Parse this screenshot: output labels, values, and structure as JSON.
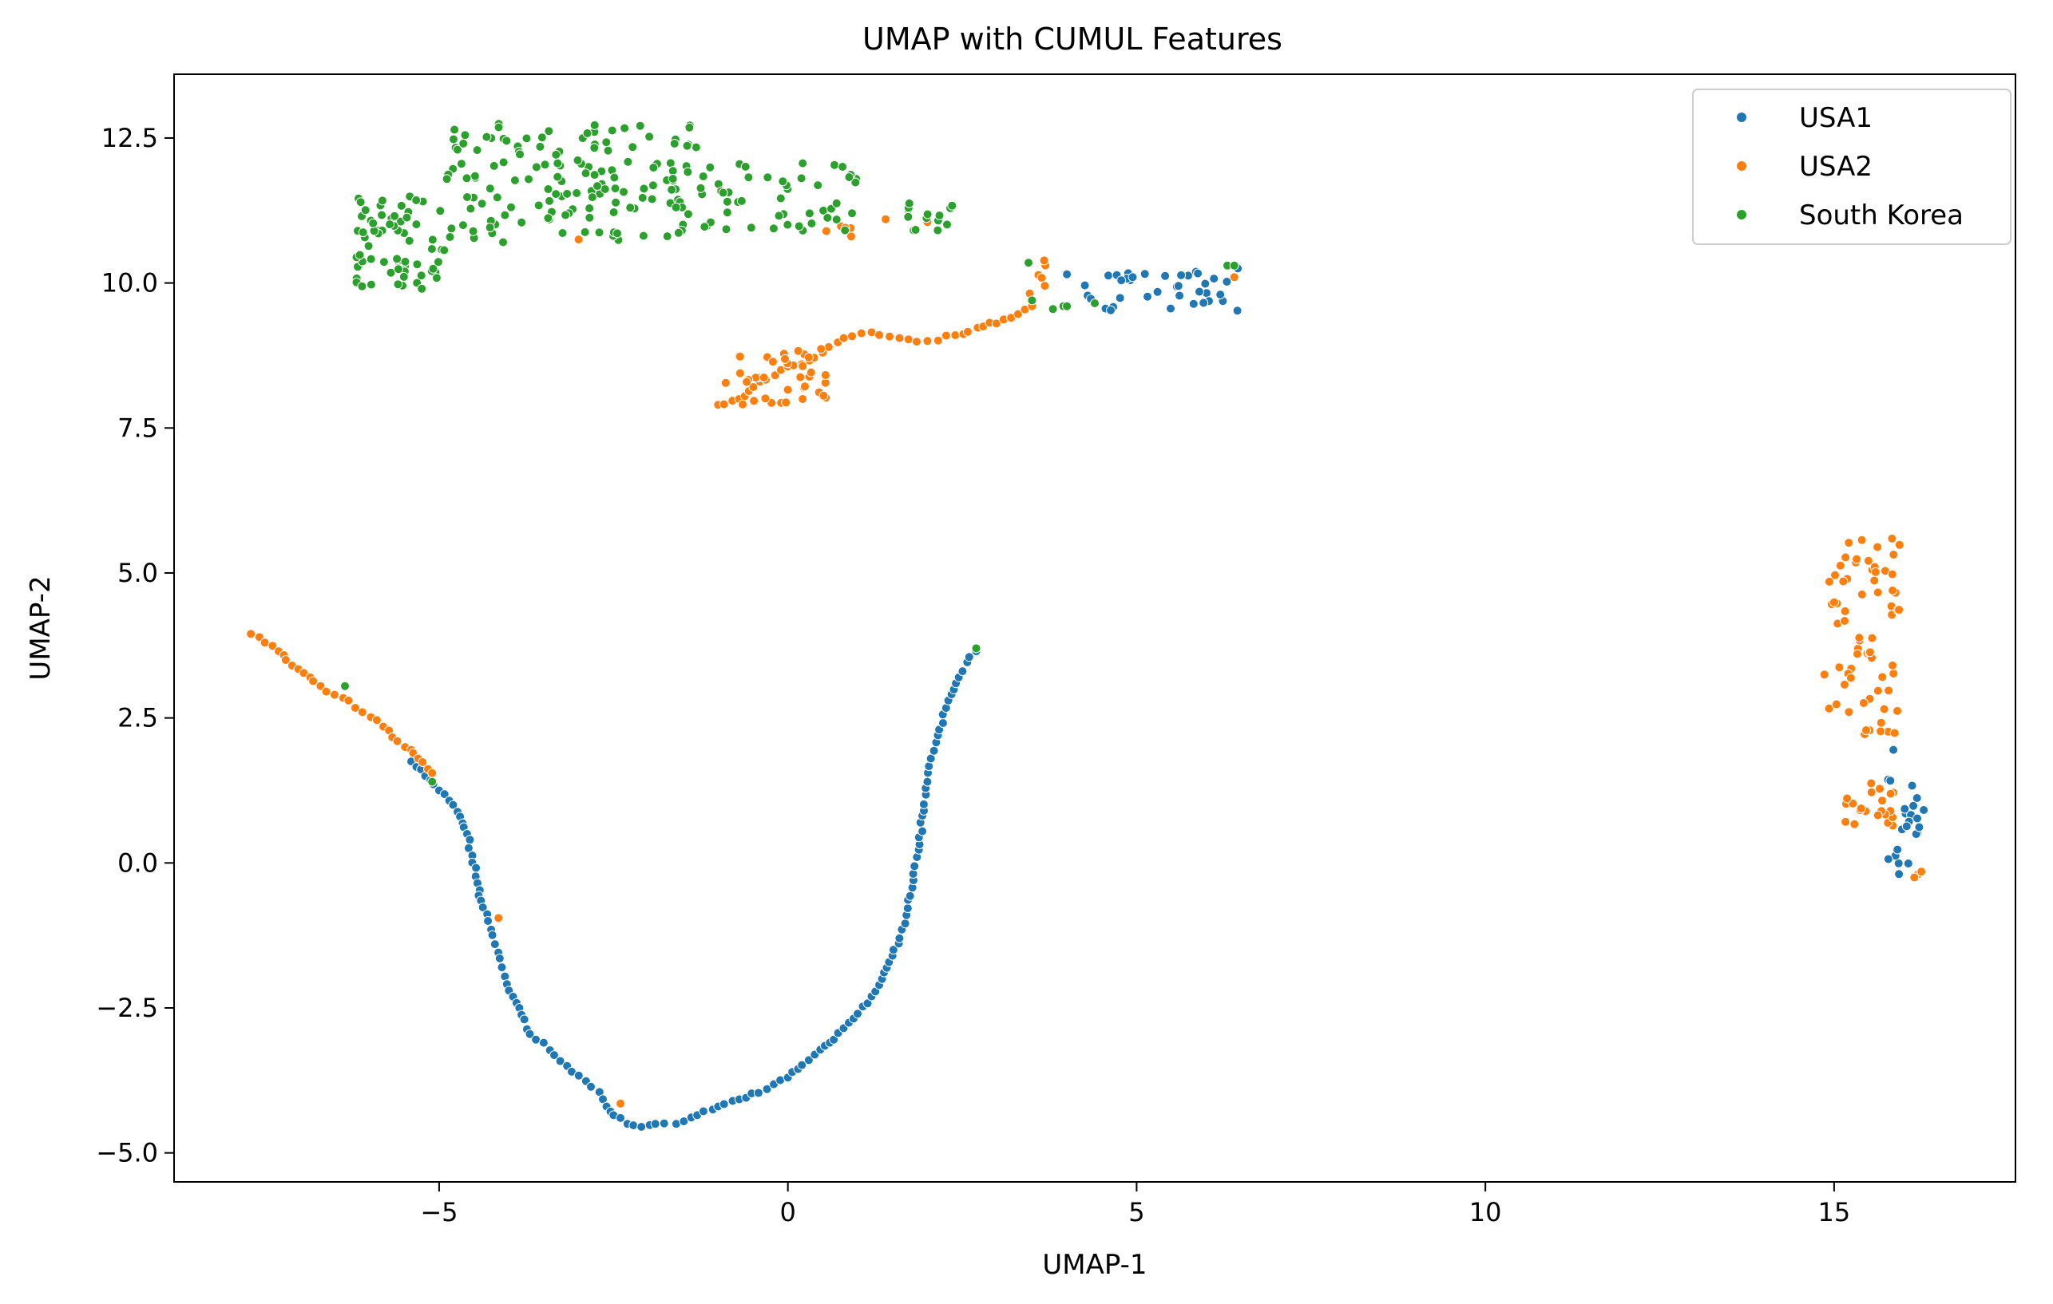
{
  "chart_data": {
    "type": "scatter",
    "title": "UMAP with CUMUL Features",
    "xlabel": "UMAP-1",
    "ylabel": "UMAP-2",
    "xlim": [
      -8.8,
      17.6
    ],
    "ylim": [
      -5.5,
      13.6
    ],
    "xticks": [
      {
        "value": -5,
        "label": "−5"
      },
      {
        "value": 0,
        "label": "0"
      },
      {
        "value": 5,
        "label": "5"
      },
      {
        "value": 10,
        "label": "10"
      },
      {
        "value": 15,
        "label": "15"
      }
    ],
    "yticks": [
      {
        "value": -5,
        "label": "−5.0"
      },
      {
        "value": -2.5,
        "label": "−2.5"
      },
      {
        "value": 0,
        "label": "0.0"
      },
      {
        "value": 2.5,
        "label": "2.5"
      },
      {
        "value": 5,
        "label": "5.0"
      },
      {
        "value": 7.5,
        "label": "7.5"
      },
      {
        "value": 10,
        "label": "10.0"
      },
      {
        "value": 12.5,
        "label": "12.5"
      }
    ],
    "grid": false,
    "legend_position": "top-right",
    "series": [
      {
        "name": "USA1",
        "color": "#1f77b4",
        "path": [
          [
            -5.4,
            1.75
          ],
          [
            -5.2,
            1.5
          ],
          [
            -5.0,
            1.25
          ],
          [
            -4.8,
            1.0
          ],
          [
            -4.7,
            0.8
          ],
          [
            -4.6,
            0.5
          ],
          [
            -4.45,
            -0.35
          ],
          [
            -4.4,
            -0.65
          ],
          [
            -4.3,
            -1.0
          ],
          [
            -4.2,
            -1.4
          ],
          [
            -4.1,
            -1.8
          ],
          [
            -4.0,
            -2.2
          ],
          [
            -3.85,
            -2.5
          ],
          [
            -3.7,
            -2.95
          ],
          [
            -3.5,
            -3.1
          ],
          [
            -3.1,
            -3.6
          ],
          [
            -2.7,
            -3.95
          ],
          [
            -2.6,
            -4.2
          ],
          [
            -2.5,
            -4.35
          ],
          [
            -2.3,
            -4.5
          ],
          [
            -2.1,
            -4.55
          ],
          [
            -1.9,
            -4.5
          ],
          [
            -1.6,
            -4.5
          ],
          [
            -1.3,
            -4.35
          ],
          [
            -1.0,
            -4.2
          ],
          [
            -0.6,
            -4.05
          ],
          [
            -0.3,
            -3.9
          ],
          [
            0.0,
            -3.7
          ],
          [
            0.3,
            -3.4
          ],
          [
            0.6,
            -3.1
          ],
          [
            0.8,
            -2.85
          ],
          [
            1.0,
            -2.6
          ],
          [
            1.2,
            -2.3
          ],
          [
            1.35,
            -2.0
          ],
          [
            1.5,
            -1.6
          ],
          [
            1.6,
            -1.3
          ],
          [
            1.7,
            -0.9
          ],
          [
            1.8,
            -0.3
          ],
          [
            1.85,
            0.1
          ],
          [
            1.95,
            0.9
          ],
          [
            2.0,
            1.4
          ],
          [
            2.05,
            1.8
          ],
          [
            2.15,
            2.2
          ],
          [
            2.3,
            2.8
          ],
          [
            2.45,
            3.2
          ],
          [
            2.6,
            3.55
          ],
          [
            2.7,
            3.65
          ]
        ],
        "clusters": [
          {
            "x": [
              4.2,
              6.5
            ],
            "y": [
              9.5,
              10.2
            ],
            "n": 34
          },
          {
            "x": [
              15.75,
              16.3
            ],
            "y": [
              -0.2,
              1.45
            ],
            "n": 22
          }
        ],
        "extra_points": [
          [
            15.85,
            1.95
          ],
          [
            4.0,
            10.15
          ],
          [
            5.6,
            9.95
          ],
          [
            5.9,
            9.85
          ],
          [
            6.2,
            9.8
          ],
          [
            6.45,
            10.25
          ]
        ]
      },
      {
        "name": "USA2",
        "color": "#ff7f0e",
        "path": [
          [
            -7.7,
            3.95
          ],
          [
            -7.5,
            3.8
          ],
          [
            -7.3,
            3.65
          ],
          [
            -7.2,
            3.5
          ],
          [
            -6.7,
            3.05
          ],
          [
            -6.5,
            2.9
          ],
          [
            -6.3,
            2.8
          ],
          [
            -6.1,
            2.6
          ],
          [
            -5.8,
            2.35
          ],
          [
            -5.6,
            2.1
          ],
          [
            -5.4,
            1.95
          ],
          [
            -5.3,
            1.8
          ],
          [
            -5.1,
            1.55
          ],
          [
            -4.15,
            -0.95
          ],
          [
            -2.4,
            -4.15
          ],
          [
            -1.0,
            7.9
          ],
          [
            -0.7,
            8.0
          ],
          [
            -0.4,
            8.3
          ],
          [
            -0.1,
            8.5
          ],
          [
            0.2,
            8.6
          ],
          [
            0.5,
            8.8
          ],
          [
            0.8,
            9.05
          ],
          [
            1.2,
            9.15
          ],
          [
            1.6,
            9.05
          ],
          [
            2.0,
            9.0
          ],
          [
            2.4,
            9.1
          ],
          [
            2.8,
            9.25
          ],
          [
            3.2,
            9.4
          ],
          [
            3.5,
            9.6
          ]
        ],
        "clusters": [
          {
            "x": [
              -0.9,
              0.6
            ],
            "y": [
              7.9,
              8.9
            ],
            "n": 40
          },
          {
            "x": [
              14.85,
              15.95
            ],
            "y": [
              2.2,
              5.6
            ],
            "n": 70
          },
          {
            "x": [
              15.1,
              15.9
            ],
            "y": [
              0.6,
              1.4
            ],
            "n": 22
          },
          {
            "x": [
              3.4,
              3.7
            ],
            "y": [
              9.8,
              10.5
            ],
            "n": 6
          },
          {
            "x": [
              0.55,
              0.95
            ],
            "y": [
              10.8,
              11.0
            ],
            "n": 5
          }
        ],
        "extra_points": [
          [
            16.2,
            -0.2
          ],
          [
            16.15,
            -0.25
          ],
          [
            16.25,
            -0.15
          ],
          [
            6.4,
            10.1
          ],
          [
            -3.0,
            10.75
          ],
          [
            1.4,
            11.1
          ],
          [
            2.0,
            11.05
          ]
        ]
      },
      {
        "name": "South Korea",
        "color": "#2ca02c",
        "path": [],
        "clusters": [
          {
            "x": [
              -6.2,
              -4.9
            ],
            "y": [
              9.9,
              11.6
            ],
            "n": 70
          },
          {
            "x": [
              -4.9,
              -1.3
            ],
            "y": [
              10.7,
              12.8
            ],
            "n": 150
          },
          {
            "x": [
              -1.3,
              1.1
            ],
            "y": [
              10.9,
              12.1
            ],
            "n": 50
          },
          {
            "x": [
              1.7,
              2.4
            ],
            "y": [
              10.9,
              11.4
            ],
            "n": 14
          }
        ],
        "extra_points": [
          [
            -6.35,
            3.05
          ],
          [
            -5.1,
            1.4
          ],
          [
            2.7,
            3.7
          ],
          [
            3.45,
            10.35
          ],
          [
            3.5,
            9.7
          ],
          [
            3.8,
            9.55
          ],
          [
            3.95,
            9.6
          ],
          [
            4.0,
            9.6
          ],
          [
            4.4,
            9.65
          ],
          [
            6.3,
            10.3
          ],
          [
            6.4,
            10.3
          ]
        ]
      }
    ]
  }
}
